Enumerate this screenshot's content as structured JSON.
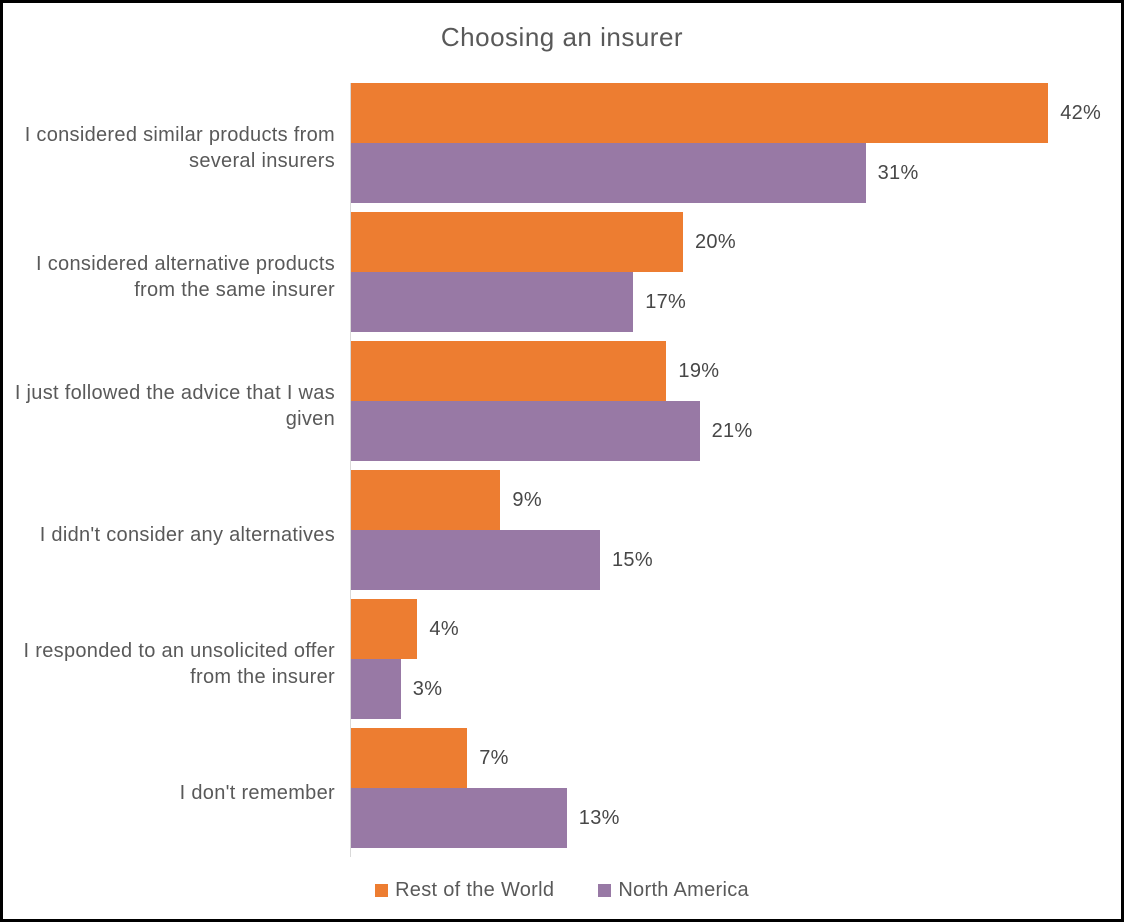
{
  "title": "Choosing an insurer",
  "chart_data": {
    "type": "bar",
    "orientation": "horizontal",
    "title": "Choosing an insurer",
    "categories": [
      "I considered similar products from several insurers",
      "I considered alternative products from the same insurer",
      "I just followed the advice that I was given",
      "I didn't consider any alternatives",
      "I responded to an unsolicited offer from the insurer",
      "I don't remember"
    ],
    "series": [
      {
        "name": "Rest of the World",
        "color": "#ED7D31",
        "values": [
          42,
          20,
          19,
          9,
          4,
          7
        ]
      },
      {
        "name": "North America",
        "color": "#9879A5",
        "values": [
          31,
          17,
          21,
          15,
          3,
          13
        ]
      }
    ],
    "value_suffix": "%",
    "xlim": [
      0,
      45
    ],
    "grid": false,
    "legend_position": "bottom",
    "data_labels": true
  },
  "colors": {
    "title_text": "#595959",
    "category_text": "#595959",
    "value_text": "#474747",
    "axis_line": "#D9D9D9",
    "background": "#FFFFFF",
    "frame_border": "#000000"
  }
}
